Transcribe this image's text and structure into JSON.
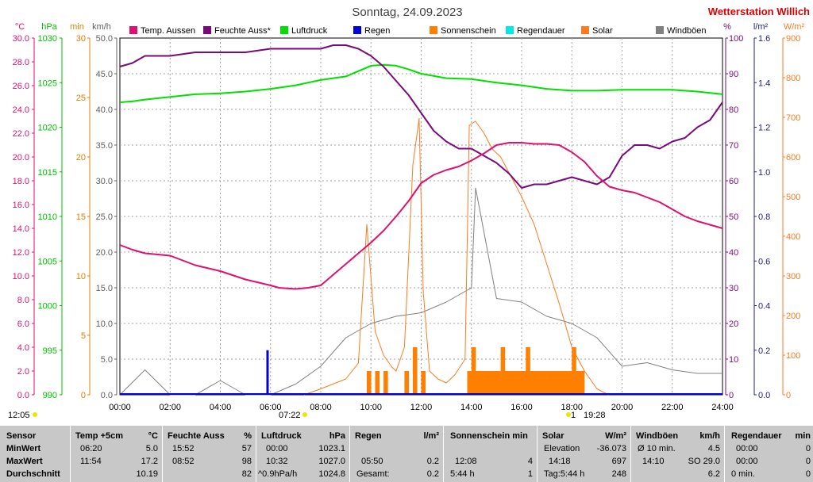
{
  "header": {
    "title": "Sonntag, 24.09.2023",
    "station": "Wetterstation Willich"
  },
  "colors": {
    "temp": "#e0106e",
    "humidity": "#7a0a7a",
    "pressure": "#00e000",
    "rain": "#0000dd",
    "sunshine": "#ff8000",
    "rainduration": "#00e8e8",
    "solar": "#ff7a20",
    "gust": "#808080",
    "minaxis": "#e08000",
    "kmhaxis": "#606060",
    "rainrate": "#202080"
  },
  "legend": [
    {
      "label": "Temp. Aussen",
      "color": "#e0106e"
    },
    {
      "label": "Feuchte Auss*",
      "color": "#7a0a7a"
    },
    {
      "label": "Luftdruck",
      "color": "#00e000"
    },
    {
      "label": "Regen",
      "color": "#0000dd"
    },
    {
      "label": "Sonnenschein",
      "color": "#ff8000"
    },
    {
      "label": "Regendauer",
      "color": "#00e8e8"
    },
    {
      "label": "Solar",
      "color": "#ff7a20"
    },
    {
      "label": "Windböen",
      "color": "#808080"
    }
  ],
  "axes": {
    "temp": {
      "unit": "°C",
      "ticks": [
        "30.0",
        "28.0",
        "26.0",
        "24.0",
        "22.0",
        "20.0",
        "18.0",
        "16.0",
        "14.0",
        "12.0",
        "10.0",
        "8.0",
        "6.0",
        "4.0",
        "2.0",
        "0.0"
      ]
    },
    "pressure": {
      "unit": "hPa",
      "ticks": [
        "1030",
        "1025",
        "1020",
        "1015",
        "1010",
        "1005",
        "1000",
        "995",
        "990"
      ]
    },
    "minutes": {
      "unit": "min",
      "ticks": [
        "30",
        "25",
        "20",
        "15",
        "10",
        "5",
        "0"
      ]
    },
    "wind": {
      "unit": "km/h",
      "ticks": [
        "50.0",
        "45.0",
        "40.0",
        "35.0",
        "30.0",
        "25.0",
        "20.0",
        "15.0",
        "10.0",
        "5.0",
        "0.0"
      ]
    },
    "humidity": {
      "unit": "%",
      "ticks": [
        "100",
        "90",
        "80",
        "70",
        "60",
        "50",
        "40",
        "30",
        "20",
        "10",
        "0"
      ]
    },
    "rainrate": {
      "unit": "l/m²",
      "ticks": [
        "1.6",
        "1.4",
        "1.2",
        "1.0",
        "0.8",
        "0.6",
        "0.4",
        "0.2",
        "0.0"
      ]
    },
    "solar": {
      "unit": "W/m²",
      "ticks": [
        "900",
        "800",
        "700",
        "600",
        "500",
        "400",
        "300",
        "200",
        "100",
        "0"
      ]
    },
    "x": {
      "ticks": [
        "00:00",
        "02:00",
        "04:00",
        "06:00",
        "08:00",
        "10:00",
        "12:00",
        "14:00",
        "16:00",
        "18:00",
        "20:00",
        "22:00",
        "24:00"
      ]
    }
  },
  "markers": {
    "moonrise": "12:05",
    "sunrise": "07:22",
    "moonset_label": "1",
    "sunset": "19:28"
  },
  "chart_data": {
    "type": "line",
    "x_range": [
      "00:00",
      "24:00"
    ],
    "grid": true,
    "legend_position": "top",
    "series": [
      {
        "name": "Temp. Aussen",
        "unit": "°C",
        "axis": "temp",
        "x": [
          "00:00",
          "00:30",
          "01:00",
          "02:00",
          "03:00",
          "04:00",
          "05:00",
          "06:00",
          "06:20",
          "07:00",
          "07:30",
          "08:00",
          "08:30",
          "09:00",
          "09:30",
          "10:00",
          "10:30",
          "11:00",
          "11:30",
          "12:00",
          "12:30",
          "13:00",
          "13:30",
          "14:00",
          "14:30",
          "15:00",
          "15:30",
          "16:00",
          "16:30",
          "17:00",
          "17:30",
          "18:00",
          "18:30",
          "19:00",
          "19:30",
          "20:00",
          "20:30",
          "21:00",
          "21:30",
          "22:00",
          "22:30",
          "23:00",
          "23:30",
          "24:00"
        ],
        "y": [
          12.6,
          12.2,
          11.9,
          11.7,
          10.9,
          10.4,
          9.7,
          9.2,
          9.0,
          8.9,
          9.0,
          9.2,
          10.1,
          11.0,
          11.9,
          12.8,
          13.8,
          15.0,
          16.3,
          17.8,
          18.5,
          18.9,
          19.2,
          19.7,
          20.3,
          21.0,
          21.2,
          21.2,
          21.1,
          21.1,
          21.0,
          20.4,
          19.6,
          18.4,
          17.5,
          17.2,
          17.0,
          16.6,
          16.2,
          15.6,
          15.0,
          14.6,
          14.3,
          14.0
        ]
      },
      {
        "name": "Feuchte Auss*",
        "unit": "%",
        "axis": "humidity",
        "x": [
          "00:00",
          "00:30",
          "01:00",
          "02:00",
          "03:00",
          "04:00",
          "05:00",
          "06:00",
          "07:00",
          "08:00",
          "08:30",
          "09:00",
          "09:30",
          "10:00",
          "10:30",
          "11:00",
          "11:30",
          "12:00",
          "12:30",
          "13:00",
          "13:30",
          "14:00",
          "14:30",
          "15:00",
          "15:30",
          "16:00",
          "16:30",
          "17:00",
          "17:30",
          "18:00",
          "18:30",
          "19:00",
          "19:30",
          "20:00",
          "20:30",
          "21:00",
          "21:30",
          "22:00",
          "22:30",
          "23:00",
          "23:30",
          "24:00"
        ],
        "y": [
          92,
          93,
          95,
          95,
          96,
          96,
          96,
          97,
          97,
          97,
          98,
          98,
          97,
          95,
          92,
          88,
          84,
          79,
          74,
          71,
          69,
          69,
          67,
          65,
          62,
          58,
          59,
          59,
          60,
          61,
          60,
          59,
          61,
          67,
          70,
          70,
          69,
          71,
          72,
          75,
          77,
          82
        ]
      },
      {
        "name": "Luftdruck",
        "unit": "hPa",
        "axis": "pressure",
        "x": [
          "00:00",
          "00:30",
          "01:00",
          "02:00",
          "03:00",
          "04:00",
          "05:00",
          "06:00",
          "07:00",
          "08:00",
          "09:00",
          "10:00",
          "10:32",
          "11:00",
          "11:30",
          "12:00",
          "13:00",
          "14:00",
          "15:00",
          "16:00",
          "17:00",
          "18:00",
          "19:00",
          "20:00",
          "21:00",
          "22:00",
          "23:00",
          "24:00"
        ],
        "y": [
          1022.8,
          1022.9,
          1023.1,
          1023.4,
          1023.7,
          1023.8,
          1024.0,
          1024.3,
          1024.7,
          1025.3,
          1025.7,
          1026.9,
          1027.0,
          1026.9,
          1026.5,
          1026.0,
          1025.5,
          1025.4,
          1025.0,
          1024.7,
          1024.3,
          1024.1,
          1024.1,
          1024.2,
          1024.2,
          1024.2,
          1024.0,
          1023.7
        ]
      },
      {
        "name": "Solar",
        "unit": "W/m²",
        "axis": "solar",
        "x": [
          "07:20",
          "08:00",
          "09:00",
          "09:30",
          "09:50",
          "10:10",
          "10:30",
          "10:50",
          "11:00",
          "11:20",
          "11:40",
          "11:55",
          "12:05",
          "12:20",
          "12:40",
          "13:00",
          "13:20",
          "13:45",
          "13:55",
          "14:10",
          "14:30",
          "14:50",
          "15:10",
          "15:30",
          "16:00",
          "16:30",
          "17:00",
          "17:30",
          "18:00",
          "18:30",
          "19:00",
          "19:28"
        ],
        "y": [
          0,
          15,
          40,
          80,
          430,
          160,
          100,
          70,
          60,
          120,
          580,
          697,
          260,
          60,
          40,
          30,
          50,
          90,
          680,
          690,
          660,
          620,
          600,
          560,
          500,
          430,
          330,
          230,
          120,
          60,
          15,
          0
        ]
      },
      {
        "name": "Windböen",
        "unit": "km/h",
        "axis": "wind",
        "x": [
          "00:00",
          "01:00",
          "02:00",
          "03:00",
          "04:00",
          "05:00",
          "06:00",
          "07:00",
          "08:00",
          "09:00",
          "10:00",
          "11:00",
          "12:00",
          "13:00",
          "14:00",
          "14:10",
          "15:00",
          "16:00",
          "17:00",
          "18:00",
          "19:00",
          "20:00",
          "21:00",
          "22:00",
          "23:00",
          "24:00"
        ],
        "y": [
          0.0,
          3.5,
          0.0,
          0.0,
          2.0,
          0.0,
          0.0,
          1.5,
          4.0,
          8.0,
          10.0,
          11.0,
          11.5,
          13.0,
          15.0,
          29.0,
          13.5,
          13.0,
          11.0,
          10.0,
          8.0,
          4.0,
          4.5,
          3.5,
          3.0,
          3.0
        ]
      },
      {
        "name": "Regen",
        "unit": "l/m²",
        "axis": "rainrate",
        "x": [
          "05:50"
        ],
        "y": [
          0.2
        ]
      },
      {
        "name": "Sonnenschein",
        "unit": "min",
        "axis": "minutes",
        "x": [
          "09:50",
          "10:10",
          "10:30",
          "11:20",
          "11:40",
          "12:00",
          "13:50",
          "14:00",
          "14:10",
          "14:20",
          "14:30",
          "14:40",
          "14:50",
          "15:00",
          "15:10",
          "15:20",
          "15:30",
          "15:40",
          "15:50",
          "16:00",
          "16:10",
          "16:20",
          "16:30",
          "16:40",
          "16:50",
          "17:00",
          "17:10",
          "17:20",
          "17:30",
          "17:40",
          "17:50",
          "18:00",
          "18:10",
          "18:20"
        ],
        "y": [
          2,
          2,
          2,
          2,
          4,
          2,
          2,
          4,
          2,
          2,
          2,
          2,
          2,
          2,
          4,
          2,
          2,
          2,
          2,
          2,
          4,
          2,
          2,
          2,
          2,
          2,
          2,
          2,
          2,
          2,
          2,
          4,
          2,
          2
        ]
      }
    ]
  },
  "stats": {
    "headers": {
      "sensor": "Sensor",
      "temp": "Temp +5cm",
      "temp_unit": "°C",
      "hum": "Feuchte Auss",
      "hum_unit": "%",
      "press": "Luftdruck",
      "press_unit": "hPa",
      "rain": "Regen",
      "rain_unit": "l/m²",
      "sun": "Sonnenschein min",
      "solar": "Solar",
      "solar_unit": "W/m²",
      "wind": "Windböen",
      "wind_unit": "km/h",
      "rdur": "Regendauer",
      "rdur_unit": "min"
    },
    "rows": [
      {
        "label": "MinWert",
        "temp_time": "06:20",
        "temp_val": "5.0",
        "hum_time": "15:52",
        "hum_val": "57",
        "press_time": "00:00",
        "press_val": "1023.1",
        "rain_time": "",
        "rain_val": "",
        "sun_time": "",
        "sun_val": "",
        "solar_time": "Elevation",
        "solar_val": "-36.073",
        "wind_time": "Ø 10 min.",
        "wind_val": "4.5",
        "rdur_time": "00:00",
        "rdur_val": "0"
      },
      {
        "label": "MaxWert",
        "temp_time": "11:54",
        "temp_val": "17.2",
        "hum_time": "08:52",
        "hum_val": "98",
        "press_time": "10:32",
        "press_val": "1027.0",
        "rain_time": "05:50",
        "rain_val": "0.2",
        "sun_time": "12:08",
        "sun_val": "4",
        "solar_time": "14:18",
        "solar_val": "697",
        "wind_time": "14:10",
        "wind_val": "SO 29.0",
        "rdur_time": "00:00",
        "rdur_val": "0"
      },
      {
        "label": "Durchschnitt",
        "temp_time": "",
        "temp_val": "10.19",
        "hum_time": "",
        "hum_val": "82",
        "press_time": "^0.9hPa/h",
        "press_val": "1024.8",
        "rain_time": "Gesamt:",
        "rain_val": "0.2",
        "sun_time": "5:44 h",
        "sun_val": "1",
        "solar_time": "Tag:5:44 h",
        "solar_val": "248",
        "wind_time": "",
        "wind_val": "6.2",
        "rdur_time": "0 min.",
        "rdur_val": "0"
      }
    ]
  }
}
